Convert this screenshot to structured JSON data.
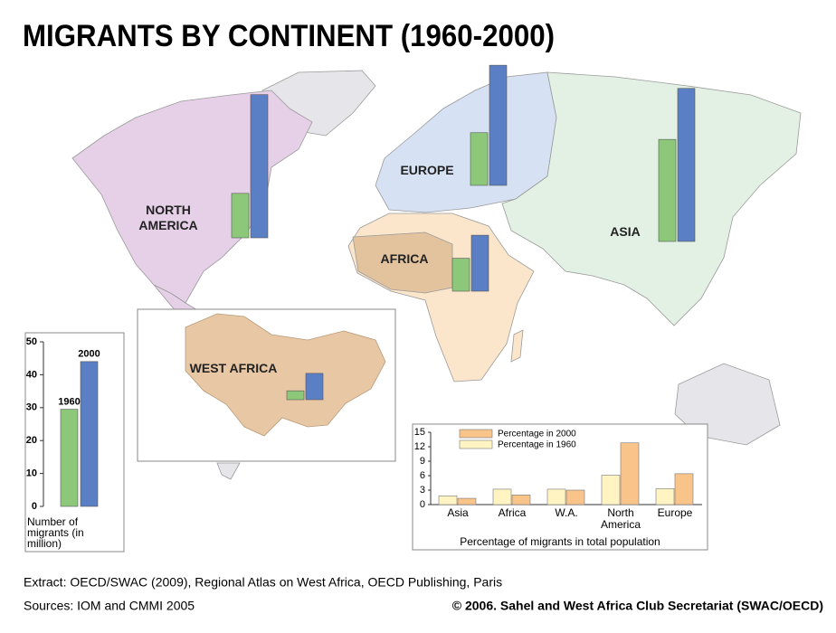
{
  "title": "MIGRANTS BY CONTINENT (1960-2000)",
  "map": {
    "regions": [
      {
        "label": "NORTH AMERICA",
        "migrants_1960": 13.5,
        "migrants_2000": 43.5
      },
      {
        "label": "EUROPE",
        "migrants_1960": 16,
        "migrants_2000": 36.5
      },
      {
        "label": "ASIA",
        "migrants_1960": 31,
        "migrants_2000": 46.5
      },
      {
        "label": "AFRICA",
        "migrants_1960": 10,
        "migrants_2000": 17
      },
      {
        "label": "WEST AFRICA",
        "migrants_1960": 2.7,
        "migrants_2000": 8
      }
    ]
  },
  "chart_data": [
    {
      "type": "bar",
      "categories": [
        "1960",
        "2000"
      ],
      "values": [
        29.5,
        44
      ],
      "colors": [
        "#8dc87a",
        "#5b7fc4"
      ],
      "ylim": [
        0,
        50
      ],
      "yticks": [
        0,
        10,
        20,
        30,
        40,
        50
      ],
      "y_label": "Number of migrants (in million)"
    },
    {
      "type": "bar",
      "x_label": "Percentage of migrants in total population",
      "categories": [
        "Asia",
        "Africa",
        "W.A.",
        "North America",
        "Europe"
      ],
      "series": [
        {
          "name": "Percentage in 2000",
          "color": "#f9c48a",
          "values": [
            1.3,
            2,
            3,
            12.8,
            6.4
          ]
        },
        {
          "name": "Percentage in 1960",
          "color": "#fff4c2",
          "values": [
            1.8,
            3.2,
            3.2,
            6.1,
            3.3
          ]
        }
      ],
      "ylim": [
        0,
        15
      ],
      "yticks": [
        0,
        3,
        6,
        9,
        12,
        15
      ]
    }
  ],
  "footer": {
    "extract": "Extract: OECD/SWAC (2009), Regional Atlas on West Africa, OECD Publishing, Paris",
    "sources": "Sources: IOM and CMMI 2005",
    "copyright": "© 2006. Sahel and West Africa Club Secretariat (SWAC/OECD)"
  }
}
